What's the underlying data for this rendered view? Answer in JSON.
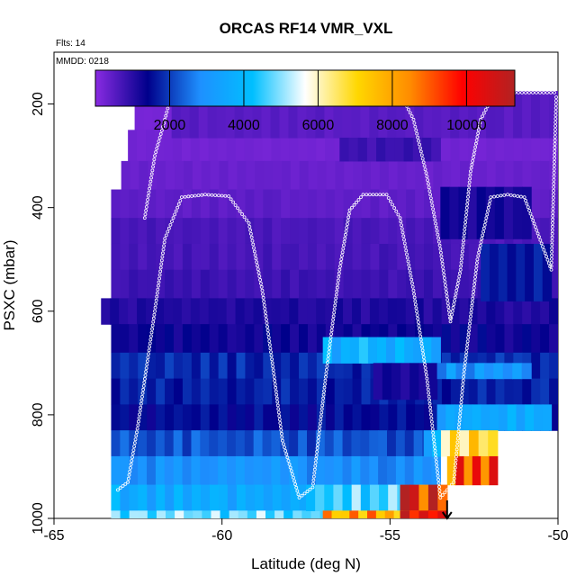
{
  "chart_data": {
    "type": "heatmap",
    "title": "ORCAS RF14 VMR_VXL",
    "flights_note": "Flts: 14",
    "date_note": "MMDD: 0218",
    "xlabel": "Latitude (deg N)",
    "ylabel": "PSXC (mbar)",
    "xlim": [
      -65,
      -50
    ],
    "ylim": [
      1000,
      100
    ],
    "x_ticks": [
      -65,
      -60,
      -55,
      -50
    ],
    "y_ticks": [
      200,
      400,
      600,
      800,
      1000
    ],
    "colorbar": {
      "range": [
        0,
        11300
      ],
      "ticks": [
        2000,
        4000,
        6000,
        8000,
        10000
      ],
      "colors": [
        "#8a2be2",
        "#00008b",
        "#1e90ff",
        "#00bfff",
        "#ffffff",
        "#ffd700",
        "#ff8c00",
        "#ff0000",
        "#b22222"
      ]
    },
    "cells": [
      {
        "lat": [
          -62.3,
          -50
        ],
        "p": [
          175,
          200
        ],
        "v": 150
      },
      {
        "lat": [
          -62.6,
          -50
        ],
        "p": [
          200,
          250
        ],
        "v": 200
      },
      {
        "lat": [
          -62.8,
          -50
        ],
        "p": [
          250,
          310
        ],
        "v": 250
      },
      {
        "lat": [
          -63,
          -50
        ],
        "p": [
          310,
          365
        ],
        "v": 350
      },
      {
        "lat": [
          -63.3,
          -50
        ],
        "p": [
          365,
          420
        ],
        "v": 450
      },
      {
        "lat": [
          -63.3,
          -50
        ],
        "p": [
          420,
          470
        ],
        "v": 650
      },
      {
        "lat": [
          -63.3,
          -50
        ],
        "p": [
          470,
          520
        ],
        "v": 700
      },
      {
        "lat": [
          -63.3,
          -50
        ],
        "p": [
          520,
          575
        ],
        "v": 800
      },
      {
        "lat": [
          -63.6,
          -50
        ],
        "p": [
          575,
          625
        ],
        "v": 1100
      },
      {
        "lat": [
          -63.3,
          -50
        ],
        "p": [
          625,
          680
        ],
        "v": 1300
      },
      {
        "lat": [
          -63.3,
          -50
        ],
        "p": [
          680,
          730
        ],
        "v": 1800
      },
      {
        "lat": [
          -63.3,
          -50
        ],
        "p": [
          730,
          780
        ],
        "v": 1700
      },
      {
        "lat": [
          -63.3,
          -50
        ],
        "p": [
          780,
          830
        ],
        "v": 1500
      },
      {
        "lat": [
          -63.3,
          -53.5
        ],
        "p": [
          830,
          880
        ],
        "v": 2200
      },
      {
        "lat": [
          -63.3,
          -53.5
        ],
        "p": [
          880,
          935
        ],
        "v": 2900
      },
      {
        "lat": [
          -63.3,
          -53.7
        ],
        "p": [
          935,
          985
        ],
        "v": 3600
      },
      {
        "lat": [
          -63.3,
          -53.3
        ],
        "p": [
          985,
          1000
        ],
        "v": 4800
      },
      {
        "lat": [
          -61.5,
          -50
        ],
        "p": [
          175,
          265
        ],
        "v": 500
      },
      {
        "lat": [
          -56.5,
          -53.5
        ],
        "p": [
          265,
          310
        ],
        "v": 800
      },
      {
        "lat": [
          -53.5,
          -50.8
        ],
        "p": [
          360,
          460
        ],
        "v": 1200
      },
      {
        "lat": [
          -52.3,
          -50.2
        ],
        "p": [
          470,
          580
        ],
        "v": 1600
      },
      {
        "lat": [
          -57,
          -53.5
        ],
        "p": [
          650,
          700
        ],
        "v": 3800
      },
      {
        "lat": [
          -55.5,
          -53.6
        ],
        "p": [
          700,
          770
        ],
        "v": 1200
      },
      {
        "lat": [
          -53.6,
          -50.8
        ],
        "p": [
          700,
          730
        ],
        "v": 3000
      },
      {
        "lat": [
          -53.6,
          -50.2
        ],
        "p": [
          780,
          830
        ],
        "v": 3500
      },
      {
        "lat": [
          -53.5,
          -51.8
        ],
        "p": [
          830,
          880
        ],
        "v": 6500
      },
      {
        "lat": [
          -54,
          -53.5
        ],
        "p": [
          830,
          880
        ],
        "v": 4000
      },
      {
        "lat": [
          -53.3,
          -51.8
        ],
        "p": [
          880,
          935
        ],
        "v": 9000
      },
      {
        "lat": [
          -57.5,
          -53.7
        ],
        "p": [
          935,
          985
        ],
        "v": 4500
      },
      {
        "lat": [
          -54.7,
          -53.3
        ],
        "p": [
          935,
          985
        ],
        "v": 10200
      },
      {
        "lat": [
          -57,
          -53.3
        ],
        "p": [
          985,
          1000
        ],
        "v": 7800
      },
      {
        "lat": [
          -54.7,
          -53.3
        ],
        "p": [
          985,
          1000
        ],
        "v": 10600
      }
    ],
    "track_path": [
      [
        -63.1,
        945
      ],
      [
        -62.8,
        930
      ],
      [
        -62.5,
        820
      ],
      [
        -62,
        600
      ],
      [
        -61.7,
        460
      ],
      [
        -61.2,
        380
      ],
      [
        -60.5,
        375
      ],
      [
        -59.8,
        378
      ],
      [
        -59.2,
        430
      ],
      [
        -58.8,
        560
      ],
      [
        -58.5,
        700
      ],
      [
        -58.2,
        850
      ],
      [
        -57.7,
        960
      ],
      [
        -57.3,
        940
      ],
      [
        -56.9,
        720
      ],
      [
        -56.5,
        520
      ],
      [
        -56.2,
        405
      ],
      [
        -55.8,
        375
      ],
      [
        -55.1,
        375
      ],
      [
        -54.7,
        420
      ],
      [
        -54.3,
        560
      ],
      [
        -53.9,
        730
      ],
      [
        -53.5,
        960
      ],
      [
        -53.1,
        930
      ],
      [
        -52.8,
        720
      ],
      [
        -52.4,
        500
      ],
      [
        -52,
        380
      ],
      [
        -51.5,
        375
      ],
      [
        -51,
        380
      ],
      [
        -50.6,
        450
      ],
      [
        -50.2,
        520
      ],
      [
        -50.05,
        180
      ]
    ],
    "track_path_upper": [
      [
        -62.3,
        420
      ],
      [
        -62,
        300
      ],
      [
        -61.7,
        230
      ],
      [
        -61.5,
        180
      ],
      [
        -60,
        178
      ],
      [
        -58,
        178
      ],
      [
        -56,
        178
      ],
      [
        -54.7,
        178
      ],
      [
        -54.3,
        230
      ],
      [
        -53.9,
        340
      ],
      [
        -53.5,
        480
      ],
      [
        -53.2,
        620
      ],
      [
        -52.9,
        520
      ],
      [
        -52.6,
        330
      ],
      [
        -52.3,
        230
      ],
      [
        -51.9,
        180
      ],
      [
        -51.5,
        178
      ],
      [
        -50,
        178
      ]
    ],
    "arrow": {
      "lat": -53.3,
      "p": 1000
    }
  }
}
